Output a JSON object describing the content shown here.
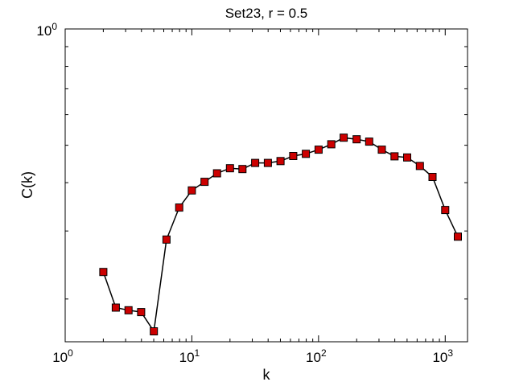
{
  "chart_data": {
    "type": "line",
    "title": "Set23, r = 0.5",
    "xlabel": "k",
    "ylabel": "C(k)",
    "xscale": "log",
    "yscale": "log",
    "xlim": [
      1,
      1500
    ],
    "ylim": [
      0.155,
      1
    ],
    "grid": false,
    "x_ticks": [
      {
        "value": 1,
        "base": "10",
        "exp": "0"
      },
      {
        "value": 10,
        "base": "10",
        "exp": "1"
      },
      {
        "value": 100,
        "base": "10",
        "exp": "2"
      },
      {
        "value": 1000,
        "base": "10",
        "exp": "3"
      }
    ],
    "y_ticks": [
      {
        "value": 1,
        "base": "10",
        "exp": "0"
      }
    ],
    "series": [
      {
        "color": "#cc0000",
        "marker": "square",
        "x": [
          2,
          2.51,
          3.16,
          3.98,
          5.01,
          6.31,
          7.94,
          10,
          12.6,
          15.8,
          20,
          25.1,
          31.6,
          39.8,
          50.1,
          63.1,
          79.4,
          100,
          126,
          158,
          200,
          251,
          316,
          398,
          501,
          631,
          794,
          1000,
          1259
        ],
        "y": [
          0.235,
          0.19,
          0.187,
          0.185,
          0.165,
          0.285,
          0.345,
          0.382,
          0.402,
          0.423,
          0.436,
          0.434,
          0.45,
          0.45,
          0.455,
          0.469,
          0.475,
          0.487,
          0.503,
          0.523,
          0.518,
          0.511,
          0.487,
          0.468,
          0.465,
          0.442,
          0.414,
          0.34,
          0.29
        ]
      }
    ]
  }
}
